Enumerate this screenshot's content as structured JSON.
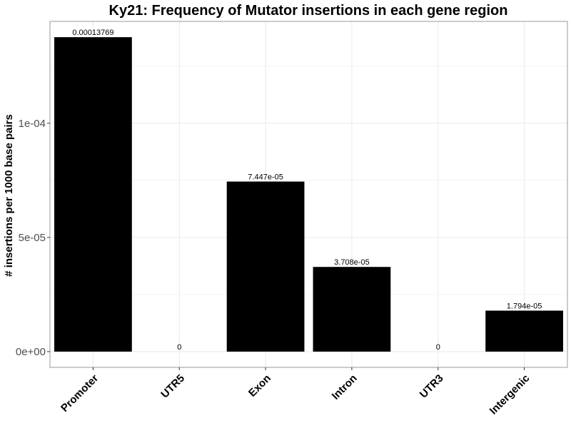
{
  "chart_data": {
    "type": "bar",
    "title": "Ky21: Frequency of Mutator insertions in each gene region",
    "xlabel": "",
    "ylabel": "# insertions per 1000 base pairs",
    "categories": [
      "Promoter",
      "UTR5",
      "Exon",
      "Intron",
      "UTR3",
      "Intergenic"
    ],
    "values": [
      0.00013769,
      0,
      7.447e-05,
      3.708e-05,
      0,
      1.794e-05
    ],
    "data_labels": [
      "0.00013769",
      "0",
      "7.447e-05",
      "3.708e-05",
      "0",
      "1.794e-05"
    ],
    "ylim": [
      -6.9e-06,
      0.0001446
    ],
    "y_ticks": [
      0,
      5e-05,
      0.0001
    ],
    "y_tick_labels": [
      "0e+00",
      "5e-05",
      "1e-04"
    ],
    "y_minor_ticks": [
      2.5e-05,
      7.5e-05,
      0.000125
    ],
    "grid": true,
    "bar_color": "#000000",
    "grid_color": "#ebebeb",
    "panel_border_color": "#999999"
  }
}
